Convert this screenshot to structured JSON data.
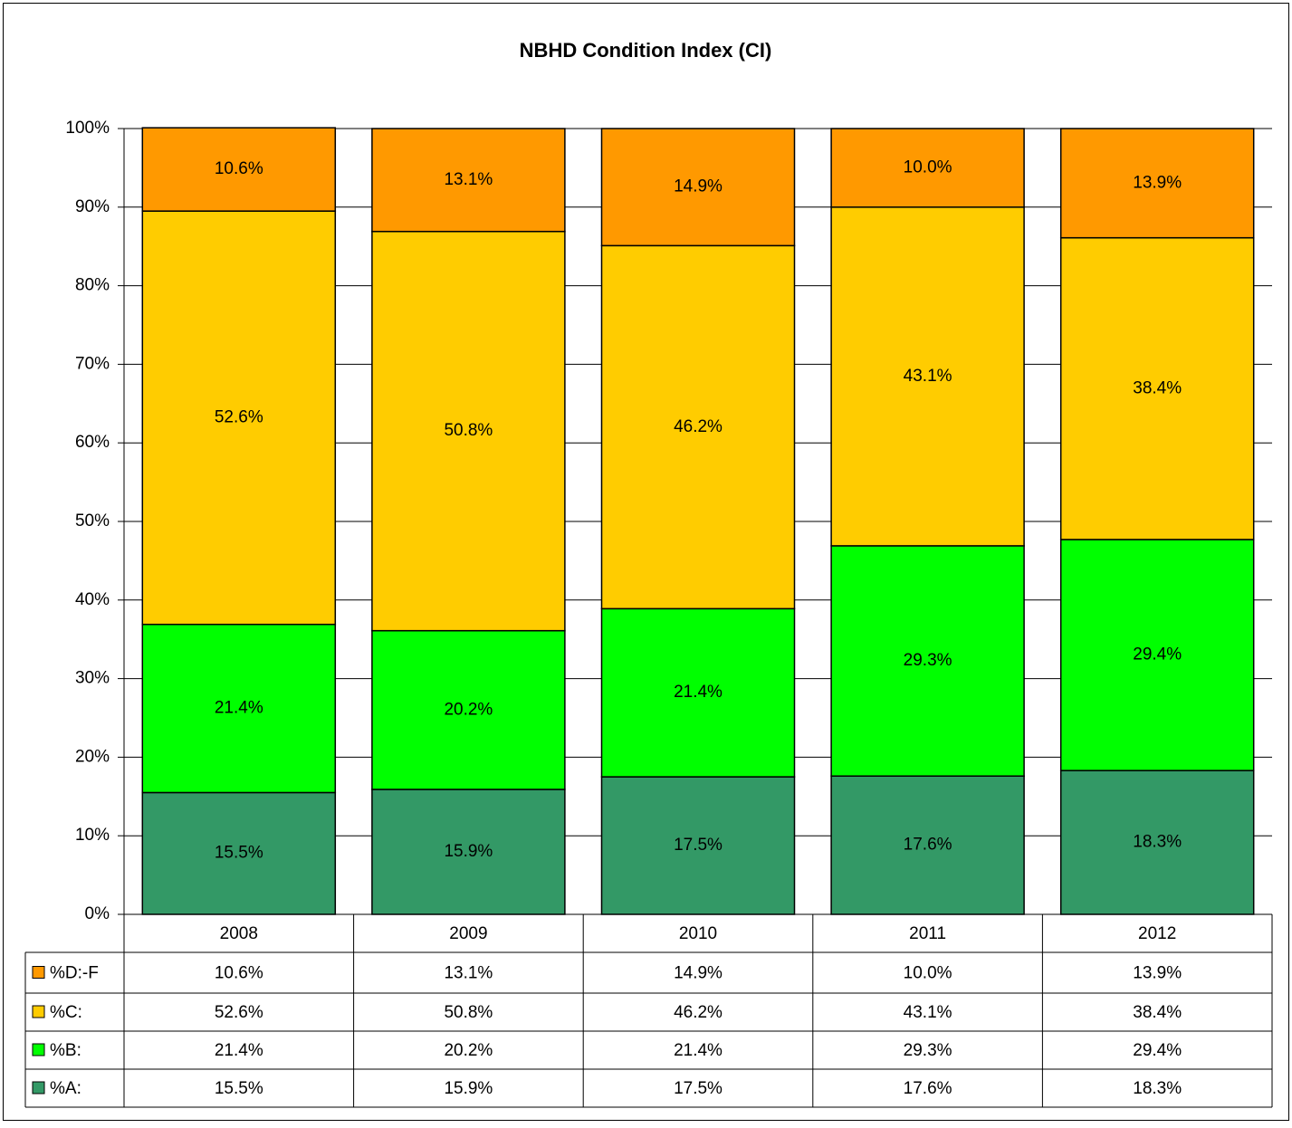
{
  "chart_data": {
    "type": "stacked_bar",
    "title": "NBHD Condition Index (CI)",
    "categories": [
      "2008",
      "2009",
      "2010",
      "2011",
      "2012"
    ],
    "series": [
      {
        "name": "%D:-F",
        "color": "#ff9900",
        "values": [
          10.6,
          13.1,
          14.9,
          10.0,
          13.9
        ],
        "value_labels": [
          "10.6%",
          "13.1%",
          "14.9%",
          "10.0%",
          "13.9%"
        ]
      },
      {
        "name": "%C:",
        "color": "#ffcc00",
        "values": [
          52.6,
          50.8,
          46.2,
          43.1,
          38.4
        ],
        "value_labels": [
          "52.6%",
          "50.8%",
          "46.2%",
          "43.1%",
          "38.4%"
        ]
      },
      {
        "name": "%B:",
        "color": "#00ff00",
        "values": [
          21.4,
          20.2,
          21.4,
          29.3,
          29.4
        ],
        "value_labels": [
          "21.4%",
          "20.2%",
          "21.4%",
          "29.3%",
          "29.4%"
        ]
      },
      {
        "name": "%A:",
        "color": "#339966",
        "values": [
          15.5,
          15.9,
          17.5,
          17.6,
          18.3
        ],
        "value_labels": [
          "15.5%",
          "15.9%",
          "17.5%",
          "17.6%",
          "18.3%"
        ]
      }
    ],
    "ylim": [
      0,
      100
    ],
    "yticks": [
      {
        "value": 0,
        "label": "0%"
      },
      {
        "value": 10,
        "label": "10%"
      },
      {
        "value": 20,
        "label": "20%"
      },
      {
        "value": 30,
        "label": "30%"
      },
      {
        "value": 40,
        "label": "40%"
      },
      {
        "value": 50,
        "label": "50%"
      },
      {
        "value": 60,
        "label": "60%"
      },
      {
        "value": 70,
        "label": "70%"
      },
      {
        "value": 80,
        "label": "80%"
      },
      {
        "value": 90,
        "label": "90%"
      },
      {
        "value": 100,
        "label": "100%"
      }
    ],
    "grid": true
  }
}
